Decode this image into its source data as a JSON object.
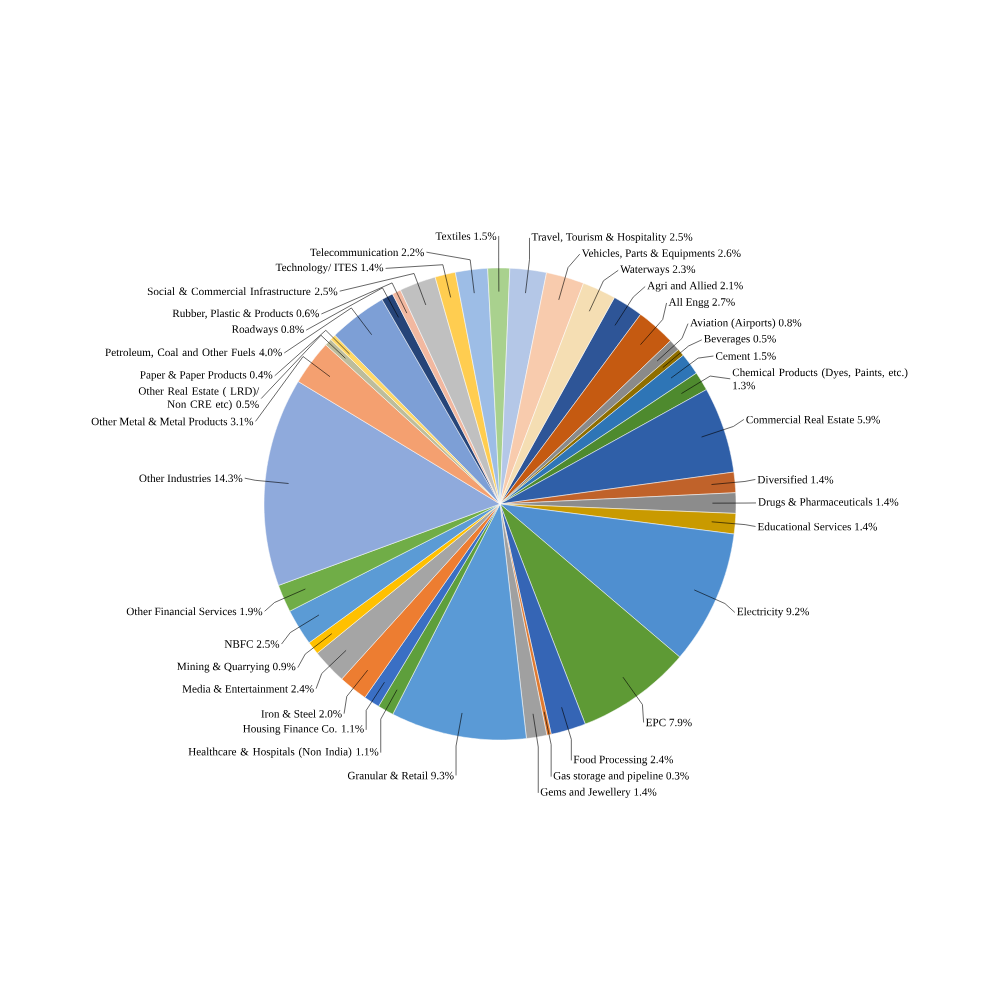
{
  "chart_data": {
    "type": "pie",
    "categories": [
      "Agri and Allied",
      "All Engg",
      "Aviation (Airports)",
      "Beverages",
      "Cement",
      "Chemical Products (Dyes, Paints, etc.)",
      "Commercial Real Estate",
      "Diversified",
      "Drugs & Pharmaceuticals",
      "Educational Services",
      "Electricity",
      "EPC",
      "Food Processing",
      "Gas storage and pipeline",
      "Gems and Jewellery",
      "Granular & Retail",
      "Healthcare & Hospitals (Non India)",
      "Housing Finance Co.",
      "Iron & Steel",
      "Media & Entertainment",
      "Mining & Quarrying",
      "NBFC",
      "Other Financial Services",
      "Other Industries",
      "Other Metal & Metal Products",
      "Other Real Estate ( LRD)/ Non CRE etc)",
      "Paper & Paper Products",
      "Petroleum, Coal and Other Fuels",
      "Roadways",
      "Rubber, Plastic & Products",
      "Social & Commercial Infrastructure",
      "Technology/ ITES",
      "Telecommunication",
      "Textiles",
      "Travel, Tourism & Hospitality",
      "Vehicles, Parts & Equipments",
      "Waterways"
    ],
    "values": [
      2.1,
      2.7,
      0.8,
      0.5,
      1.5,
      1.3,
      5.9,
      1.4,
      1.4,
      1.4,
      9.2,
      7.9,
      2.4,
      0.3,
      1.4,
      9.3,
      1.1,
      1.1,
      2.0,
      2.4,
      0.9,
      2.5,
      1.9,
      14.3,
      3.1,
      0.5,
      0.4,
      4.0,
      0.8,
      0.6,
      2.5,
      1.4,
      2.2,
      1.5,
      2.5,
      2.6,
      2.3
    ],
    "value_labels": [
      "2.1%",
      "2.7%",
      "0.8%",
      "0.5%",
      "1.5%",
      "1.3%",
      "5.9%",
      "1.4%",
      "1.4%",
      "1.4%",
      "9.2%",
      "7.9%",
      "2.4%",
      "0.3%",
      "1.4%",
      "9.3%",
      "1.1%",
      "1.1%",
      "2.0%",
      "2.4%",
      "0.9%",
      "2.5%",
      "1.9%",
      "14.3%",
      "3.1%",
      "0.5%",
      "0.4%",
      "4.0%",
      "0.8%",
      "0.6%",
      "2.5%",
      "1.4%",
      "2.2%",
      "1.5%",
      "2.5%",
      "2.6%",
      "2.3%"
    ],
    "colors": [
      "#2e5597",
      "#c55a11",
      "#8a8a8a",
      "#8f6e00",
      "#2e75b6",
      "#4e8a2e",
      "#2f5fa8",
      "#c0622a",
      "#8c8c8c",
      "#c99a00",
      "#4f8fd0",
      "#5e9a35",
      "#3565b5",
      "#e07a30",
      "#a0a0a0",
      "#5a9ad6",
      "#5e9f3c",
      "#3a6fc4",
      "#ed7d31",
      "#a5a5a5",
      "#ffc000",
      "#5b9bd5",
      "#70ad47",
      "#8faadc",
      "#f4a070",
      "#bdbd9c",
      "#ffd966",
      "#7d9fd6",
      "#264478",
      "#f2b8a0",
      "#c0c0c0",
      "#ffcd50",
      "#9dbde6",
      "#a9d18e",
      "#b4c7e7",
      "#f8cbad",
      "#f5deb3"
    ]
  }
}
